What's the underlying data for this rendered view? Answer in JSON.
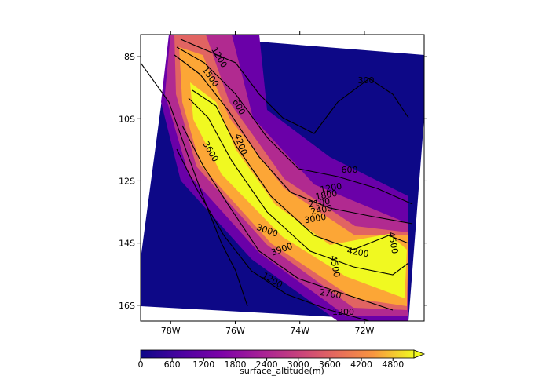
{
  "chart_data": {
    "type": "map",
    "xlim": [
      -78.93,
      -70.15
    ],
    "ylim": [
      -16.51,
      -7.29
    ],
    "xticks": [
      {
        "value": -78,
        "label": "78W"
      },
      {
        "value": -76,
        "label": "76W"
      },
      {
        "value": -74,
        "label": "74W"
      },
      {
        "value": -72,
        "label": "72W"
      }
    ],
    "yticks": [
      {
        "value": -8,
        "label": "8S"
      },
      {
        "value": -10,
        "label": "10S"
      },
      {
        "value": -12,
        "label": "12S"
      },
      {
        "value": -14,
        "label": "14S"
      },
      {
        "value": -16,
        "label": "16S"
      }
    ],
    "contour_labels": [
      "1200",
      "1500",
      "600",
      "300",
      "4200",
      "3600",
      "600",
      "1200",
      "1800",
      "2100",
      "2400",
      "3000",
      "3000",
      "3900",
      "4200",
      "4500",
      "4500",
      "1200",
      "2700",
      "1200"
    ],
    "colorbar": {
      "label": "surface_altitude(m)",
      "lim": [
        0,
        5200
      ],
      "ticks": [
        0,
        600,
        1200,
        1800,
        2400,
        3000,
        3600,
        4200,
        4800
      ],
      "colormap": "plasma"
    }
  }
}
